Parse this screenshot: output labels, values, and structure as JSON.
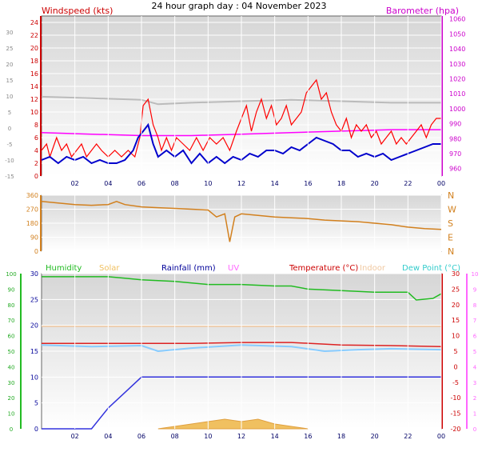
{
  "title": "24 hour graph day : 04 November 2023",
  "x_ticks": [
    "02",
    "04",
    "06",
    "08",
    "10",
    "12",
    "14",
    "16",
    "18",
    "20",
    "22",
    "00"
  ],
  "colors": {
    "wind_avg": "#0000cc",
    "wind_gust": "#ff0000",
    "barometer": "#ff00ff",
    "barometer_old": "#bbbbbb",
    "direction": "#d2801e",
    "humidity": "#22bb22",
    "solar": "#f0c060",
    "rain": "#3333dd",
    "temperature": "#dd2222",
    "indoor": "#f0c8a0",
    "dew": "#88ccff",
    "axis_left": "#cc0000"
  },
  "chart_data": [
    {
      "type": "line",
      "name": "wind-barometer",
      "title_left": "Windspeed (kts)",
      "title_right": "Barometer (hpa)",
      "y_left_ticks": [
        "0",
        "2",
        "4",
        "6",
        "8",
        "10",
        "12",
        "14",
        "16",
        "18",
        "20",
        "22",
        "24"
      ],
      "y_left_range": [
        0,
        25
      ],
      "y_right_ticks": [
        "960",
        "970",
        "980",
        "990",
        "1000",
        "1010",
        "1020",
        "1030",
        "1040",
        "1050",
        "1060"
      ],
      "y_right_range": [
        955,
        1062
      ],
      "y_far_left_ticks": [
        "30",
        "25",
        "20",
        "15",
        "10",
        "5",
        "0",
        "-5",
        "-10",
        "-15"
      ],
      "wind_gust": [
        [
          0,
          4
        ],
        [
          0.3,
          5
        ],
        [
          0.5,
          3
        ],
        [
          0.9,
          6
        ],
        [
          1.2,
          4
        ],
        [
          1.5,
          5
        ],
        [
          1.8,
          3
        ],
        [
          2.1,
          4
        ],
        [
          2.4,
          5
        ],
        [
          2.7,
          3
        ],
        [
          3.0,
          4
        ],
        [
          3.3,
          5
        ],
        [
          3.6,
          4
        ],
        [
          4.0,
          3
        ],
        [
          4.4,
          4
        ],
        [
          4.8,
          3
        ],
        [
          5.2,
          4
        ],
        [
          5.6,
          3
        ],
        [
          5.9,
          6
        ],
        [
          6.1,
          11
        ],
        [
          6.4,
          12
        ],
        [
          6.7,
          8
        ],
        [
          7.0,
          6
        ],
        [
          7.2,
          4
        ],
        [
          7.5,
          6
        ],
        [
          7.8,
          4
        ],
        [
          8.1,
          6
        ],
        [
          8.5,
          5
        ],
        [
          8.9,
          4
        ],
        [
          9.3,
          6
        ],
        [
          9.7,
          4
        ],
        [
          10.1,
          6
        ],
        [
          10.5,
          5
        ],
        [
          10.9,
          6
        ],
        [
          11.3,
          4
        ],
        [
          11.7,
          7
        ],
        [
          12.0,
          9
        ],
        [
          12.3,
          11
        ],
        [
          12.6,
          7
        ],
        [
          12.9,
          10
        ],
        [
          13.2,
          12
        ],
        [
          13.5,
          9
        ],
        [
          13.8,
          11
        ],
        [
          14.1,
          8
        ],
        [
          14.4,
          9
        ],
        [
          14.7,
          11
        ],
        [
          15.0,
          8
        ],
        [
          15.3,
          9
        ],
        [
          15.6,
          10
        ],
        [
          15.9,
          13
        ],
        [
          16.2,
          14
        ],
        [
          16.5,
          15
        ],
        [
          16.8,
          12
        ],
        [
          17.1,
          13
        ],
        [
          17.4,
          10
        ],
        [
          17.7,
          8
        ],
        [
          18.0,
          7
        ],
        [
          18.3,
          9
        ],
        [
          18.6,
          6
        ],
        [
          18.9,
          8
        ],
        [
          19.2,
          7
        ],
        [
          19.5,
          8
        ],
        [
          19.8,
          6
        ],
        [
          20.1,
          7
        ],
        [
          20.4,
          5
        ],
        [
          20.7,
          6
        ],
        [
          21.0,
          7
        ],
        [
          21.3,
          5
        ],
        [
          21.6,
          6
        ],
        [
          21.9,
          5
        ],
        [
          22.2,
          6
        ],
        [
          22.5,
          7
        ],
        [
          22.8,
          8
        ],
        [
          23.1,
          6
        ],
        [
          23.4,
          8
        ],
        [
          23.7,
          9
        ],
        [
          24,
          9
        ]
      ],
      "wind_avg": [
        [
          0,
          2.5
        ],
        [
          0.5,
          3
        ],
        [
          1.0,
          2
        ],
        [
          1.5,
          3
        ],
        [
          2.0,
          2.5
        ],
        [
          2.5,
          3
        ],
        [
          3.0,
          2
        ],
        [
          3.5,
          2.5
        ],
        [
          4.0,
          2
        ],
        [
          4.5,
          2
        ],
        [
          5.0,
          2.5
        ],
        [
          5.5,
          4
        ],
        [
          5.8,
          6
        ],
        [
          6.1,
          7
        ],
        [
          6.4,
          8
        ],
        [
          6.7,
          5
        ],
        [
          7.0,
          3
        ],
        [
          7.5,
          4
        ],
        [
          8.0,
          3
        ],
        [
          8.5,
          4
        ],
        [
          9.0,
          2
        ],
        [
          9.5,
          3.5
        ],
        [
          10.0,
          2
        ],
        [
          10.5,
          3
        ],
        [
          11.0,
          2
        ],
        [
          11.5,
          3
        ],
        [
          12.0,
          2.5
        ],
        [
          12.5,
          3.5
        ],
        [
          13.0,
          3
        ],
        [
          13.5,
          4
        ],
        [
          14.0,
          4
        ],
        [
          14.5,
          3.5
        ],
        [
          15.0,
          4.5
        ],
        [
          15.5,
          4
        ],
        [
          16.0,
          5
        ],
        [
          16.5,
          6
        ],
        [
          17.0,
          5.5
        ],
        [
          17.5,
          5
        ],
        [
          18.0,
          4
        ],
        [
          18.5,
          4
        ],
        [
          19.0,
          3
        ],
        [
          19.5,
          3.5
        ],
        [
          20.0,
          3
        ],
        [
          20.5,
          3.5
        ],
        [
          21.0,
          2.5
        ],
        [
          21.5,
          3
        ],
        [
          22.0,
          3.5
        ],
        [
          22.5,
          4
        ],
        [
          23.0,
          4.5
        ],
        [
          23.5,
          5
        ],
        [
          24,
          5
        ]
      ],
      "barometer": [
        [
          0,
          984
        ],
        [
          3,
          983
        ],
        [
          6,
          982
        ],
        [
          9,
          982
        ],
        [
          12,
          983
        ],
        [
          15,
          984
        ],
        [
          18,
          985
        ],
        [
          21,
          986
        ],
        [
          24,
          986
        ]
      ],
      "barometer_old": [
        [
          0,
          1008
        ],
        [
          3,
          1007
        ],
        [
          6,
          1006
        ],
        [
          7,
          1003
        ],
        [
          9,
          1004
        ],
        [
          12,
          1005
        ],
        [
          15,
          1006
        ],
        [
          18,
          1005
        ],
        [
          21,
          1004
        ],
        [
          24,
          1004
        ]
      ]
    },
    {
      "type": "line",
      "name": "wind-direction",
      "y_ticks": [
        "0",
        "90",
        "180",
        "270",
        "360"
      ],
      "y_range": [
        0,
        360
      ],
      "compass_labels": [
        "N",
        "W",
        "S",
        "E",
        "N"
      ],
      "direction": [
        [
          0,
          320
        ],
        [
          1,
          310
        ],
        [
          2,
          300
        ],
        [
          3,
          295
        ],
        [
          4,
          300
        ],
        [
          4.5,
          320
        ],
        [
          5,
          300
        ],
        [
          6,
          285
        ],
        [
          7,
          280
        ],
        [
          8,
          275
        ],
        [
          9,
          270
        ],
        [
          10,
          265
        ],
        [
          10.5,
          220
        ],
        [
          11,
          240
        ],
        [
          11.3,
          60
        ],
        [
          11.6,
          220
        ],
        [
          12,
          240
        ],
        [
          13,
          230
        ],
        [
          14,
          220
        ],
        [
          15,
          215
        ],
        [
          16,
          210
        ],
        [
          17,
          200
        ],
        [
          18,
          195
        ],
        [
          19,
          190
        ],
        [
          20,
          180
        ],
        [
          21,
          170
        ],
        [
          22,
          155
        ],
        [
          23,
          145
        ],
        [
          24,
          140
        ]
      ]
    },
    {
      "type": "line",
      "name": "temperature-humidity-rain",
      "labels": [
        "Humidity",
        "Solar",
        "Rainfall (mm)",
        "UV",
        "Temperature (°C)",
        "Indoor",
        "Dew Point (°C)"
      ],
      "y_humidity_ticks": [
        "0",
        "10",
        "20",
        "30",
        "40",
        "50",
        "60",
        "70",
        "80",
        "90",
        "100"
      ],
      "y_rain_ticks": [
        "0",
        "5",
        "10",
        "15",
        "20",
        "25",
        "30"
      ],
      "y_temp_ticks": [
        "30",
        "25",
        "20",
        "15",
        "10",
        "5",
        "0",
        "-5",
        "-10",
        "-15",
        "-20"
      ],
      "y_uv_ticks": [
        "10",
        "9",
        "8",
        "7",
        "6",
        "5",
        "4",
        "3",
        "2",
        "1",
        "0"
      ],
      "humidity": [
        [
          0,
          98
        ],
        [
          4,
          98
        ],
        [
          5,
          97
        ],
        [
          6,
          96
        ],
        [
          8,
          95
        ],
        [
          10,
          93
        ],
        [
          12,
          93
        ],
        [
          14,
          92
        ],
        [
          15,
          92
        ],
        [
          16,
          90
        ],
        [
          18,
          89
        ],
        [
          20,
          88
        ],
        [
          22,
          88
        ],
        [
          22.5,
          83
        ],
        [
          23.5,
          84
        ],
        [
          24,
          87
        ]
      ],
      "temperature": [
        [
          0,
          7.5
        ],
        [
          3,
          7.5
        ],
        [
          6,
          7.5
        ],
        [
          9,
          7.5
        ],
        [
          12,
          7.8
        ],
        [
          15,
          7.8
        ],
        [
          18,
          7
        ],
        [
          21,
          6.8
        ],
        [
          24,
          6.5
        ]
      ],
      "dew": [
        [
          0,
          7
        ],
        [
          3,
          6.5
        ],
        [
          6,
          6.8
        ],
        [
          7,
          5
        ],
        [
          9,
          6
        ],
        [
          12,
          7
        ],
        [
          15,
          6.5
        ],
        [
          17,
          5
        ],
        [
          19,
          5.5
        ],
        [
          21,
          5.8
        ],
        [
          24,
          5.5
        ]
      ],
      "indoor": [
        [
          0,
          13
        ],
        [
          24,
          13
        ]
      ],
      "rain": [
        [
          0,
          0
        ],
        [
          3,
          0
        ],
        [
          4,
          4
        ],
        [
          5,
          7
        ],
        [
          6,
          10
        ],
        [
          10,
          10
        ],
        [
          16,
          10
        ],
        [
          24,
          10
        ]
      ],
      "solar": [
        [
          7,
          0
        ],
        [
          8,
          1
        ],
        [
          9,
          2
        ],
        [
          10,
          3
        ],
        [
          11,
          4
        ],
        [
          12,
          3
        ],
        [
          13,
          4
        ],
        [
          14,
          2
        ],
        [
          15,
          1
        ],
        [
          16,
          0
        ]
      ]
    }
  ]
}
